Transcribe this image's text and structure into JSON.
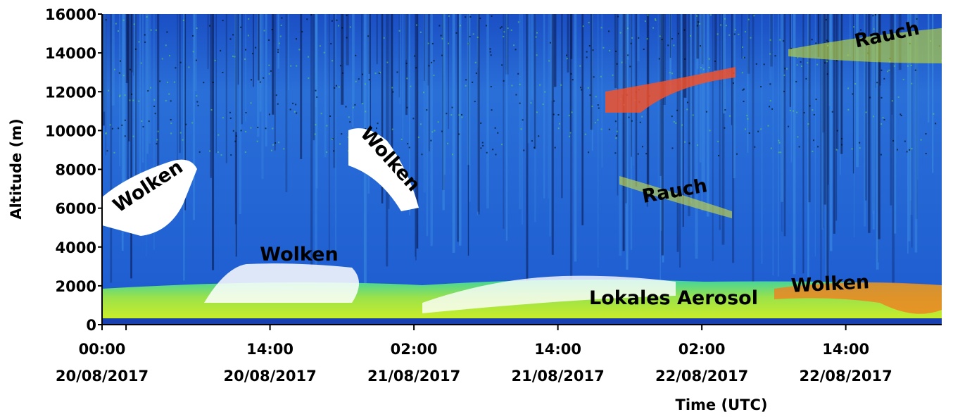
{
  "chart_data": {
    "type": "heatmap",
    "x_label": "Time (UTC)",
    "y_label": "Altitude (m)",
    "xlim": [
      0,
      70
    ],
    "xticks": [
      {
        "value": 0,
        "label": "00:00",
        "date": "20/08/2017"
      },
      {
        "value": 14,
        "label": "14:00",
        "date": "20/08/2017"
      },
      {
        "value": 26,
        "label": "02:00",
        "date": "21/08/2017"
      },
      {
        "value": 38,
        "label": "14:00",
        "date": "21/08/2017"
      },
      {
        "value": 50,
        "label": "02:00",
        "date": "22/08/2017"
      },
      {
        "value": 62,
        "label": "14:00",
        "date": "22/08/2017"
      }
    ],
    "x_minor_ticks": [
      2
    ],
    "ylim": [
      0,
      16000
    ],
    "yticks": [
      0,
      2000,
      4000,
      6000,
      8000,
      10000,
      12000,
      14000,
      16000
    ],
    "annotations": [
      "Wolken",
      "Wolken",
      "Wolken",
      "Rauch",
      "Rauch",
      "Lokales Aerosol",
      "Wolken"
    ]
  }
}
